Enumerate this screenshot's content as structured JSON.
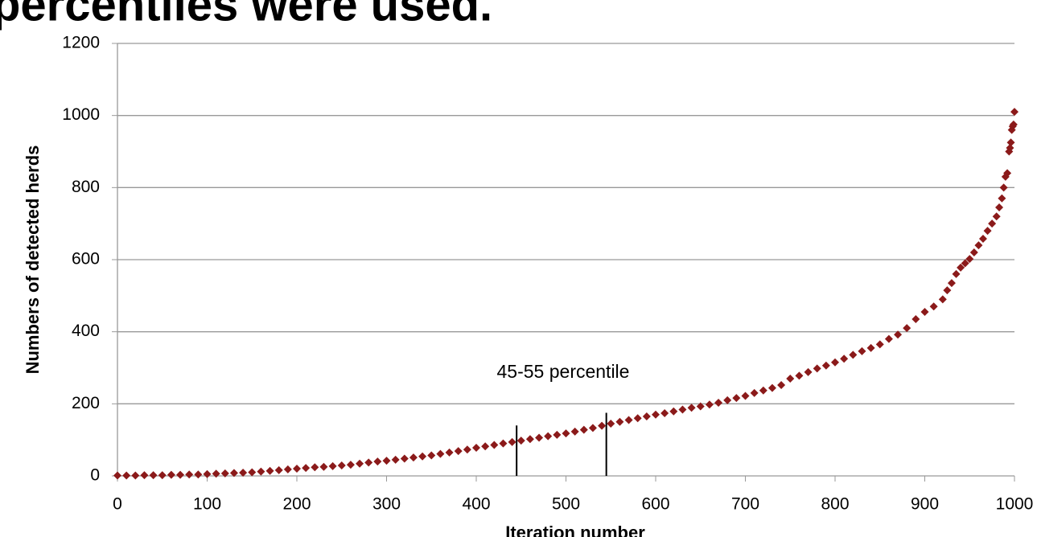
{
  "chart_data": {
    "type": "scatter",
    "title": "percentiles were used.",
    "x_label": "Iteration number",
    "y_label": "Numbers of detected herds",
    "annotation": "45-55 percentile",
    "markers": {
      "x": [
        445,
        545
      ],
      "y": [
        140,
        175
      ]
    },
    "series": [
      {
        "name": "Detected herds",
        "color": "#8b1a1a",
        "x": [
          0,
          10,
          20,
          30,
          40,
          50,
          60,
          70,
          80,
          90,
          100,
          110,
          120,
          130,
          140,
          150,
          160,
          170,
          180,
          190,
          200,
          210,
          220,
          230,
          240,
          250,
          260,
          270,
          280,
          290,
          300,
          310,
          320,
          330,
          340,
          350,
          360,
          370,
          380,
          390,
          400,
          410,
          420,
          430,
          440,
          450,
          460,
          470,
          480,
          490,
          500,
          510,
          520,
          530,
          540,
          550,
          560,
          570,
          580,
          590,
          600,
          610,
          620,
          630,
          640,
          650,
          660,
          670,
          680,
          690,
          700,
          710,
          720,
          730,
          740,
          750,
          760,
          770,
          780,
          790,
          800,
          810,
          820,
          830,
          840,
          850,
          860,
          870,
          880,
          890,
          900,
          910,
          920,
          925,
          930,
          935,
          940,
          945,
          950,
          955,
          960,
          965,
          970,
          975,
          980,
          983,
          986,
          988,
          990,
          992,
          994,
          995,
          996,
          997,
          998,
          999,
          1000
        ],
        "values": [
          1,
          1,
          1,
          2,
          2,
          2,
          3,
          3,
          4,
          4,
          5,
          6,
          7,
          8,
          9,
          10,
          12,
          14,
          16,
          18,
          20,
          22,
          24,
          25,
          27,
          29,
          31,
          34,
          37,
          40,
          42,
          45,
          48,
          51,
          54,
          57,
          61,
          65,
          69,
          73,
          78,
          82,
          86,
          90,
          94,
          98,
          102,
          106,
          110,
          114,
          118,
          123,
          128,
          133,
          139,
          145,
          150,
          155,
          160,
          165,
          170,
          174,
          179,
          184,
          189,
          193,
          198,
          203,
          210,
          216,
          222,
          230,
          237,
          244,
          252,
          270,
          278,
          288,
          298,
          306,
          315,
          325,
          336,
          346,
          355,
          365,
          380,
          392,
          410,
          435,
          455,
          470,
          490,
          515,
          535,
          560,
          578,
          590,
          602,
          620,
          640,
          658,
          680,
          700,
          720,
          745,
          770,
          800,
          830,
          840,
          900,
          910,
          925,
          960,
          970,
          975,
          1010
        ]
      }
    ],
    "xlim": [
      0,
      1000
    ],
    "xticks": [
      0,
      100,
      200,
      300,
      400,
      500,
      600,
      700,
      800,
      900,
      1000
    ],
    "ylim": [
      0,
      1200
    ],
    "yticks": [
      0,
      200,
      400,
      600,
      800,
      1000,
      1200
    ],
    "grid": true
  }
}
